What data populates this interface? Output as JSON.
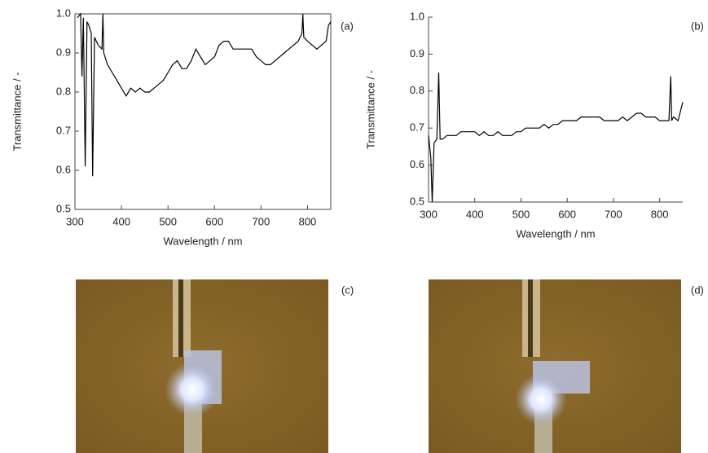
{
  "chart_data": [
    {
      "type": "line",
      "label": "(a)",
      "xlabel": "Wavelength / nm",
      "ylabel": "Transmittance / -",
      "box": true,
      "color": "#000000",
      "xlim": [
        300,
        850
      ],
      "ylim": [
        0.5,
        1.0
      ],
      "xticks": [
        300,
        400,
        500,
        600,
        700,
        800
      ],
      "yticks": [
        0.5,
        0.6,
        0.7,
        0.8,
        0.9,
        {
          "value": 1.0,
          "label": "1.0"
        }
      ],
      "x": [
        305,
        312,
        315,
        318,
        322,
        326,
        330,
        335,
        338,
        342,
        350,
        358,
        360,
        362,
        370,
        380,
        390,
        400,
        410,
        420,
        430,
        440,
        450,
        460,
        470,
        480,
        490,
        500,
        510,
        520,
        530,
        540,
        550,
        560,
        570,
        580,
        590,
        600,
        610,
        620,
        630,
        640,
        650,
        660,
        670,
        680,
        690,
        700,
        710,
        720,
        730,
        740,
        750,
        760,
        770,
        780,
        788,
        790,
        792,
        800,
        810,
        820,
        830,
        840,
        845,
        850
      ],
      "values": [
        0.99,
        1.0,
        0.84,
        0.99,
        0.61,
        0.98,
        0.97,
        0.95,
        0.585,
        0.94,
        0.92,
        0.91,
        1.0,
        0.9,
        0.87,
        0.85,
        0.83,
        0.81,
        0.79,
        0.81,
        0.8,
        0.81,
        0.8,
        0.8,
        0.81,
        0.82,
        0.83,
        0.85,
        0.87,
        0.88,
        0.86,
        0.86,
        0.88,
        0.91,
        0.89,
        0.87,
        0.88,
        0.89,
        0.92,
        0.93,
        0.93,
        0.91,
        0.91,
        0.91,
        0.91,
        0.91,
        0.89,
        0.88,
        0.87,
        0.87,
        0.88,
        0.89,
        0.9,
        0.91,
        0.92,
        0.93,
        0.95,
        1.0,
        0.94,
        0.93,
        0.92,
        0.91,
        0.92,
        0.93,
        0.97,
        0.98
      ]
    },
    {
      "type": "line",
      "label": "(b)",
      "xlabel": "Wavelength / nm",
      "ylabel": "Transmittance / -",
      "box": false,
      "color": "#000000",
      "xlim": [
        300,
        850
      ],
      "ylim": [
        0.5,
        1.0
      ],
      "xticks": [
        300,
        400,
        500,
        600,
        700,
        800
      ],
      "yticks": [
        0.5,
        0.6,
        0.7,
        0.8,
        0.9,
        {
          "value": 1.0,
          "label": "1.0"
        }
      ],
      "x": [
        300,
        305,
        308,
        312,
        318,
        322,
        325,
        330,
        340,
        350,
        360,
        370,
        380,
        390,
        400,
        410,
        420,
        430,
        440,
        450,
        460,
        470,
        480,
        490,
        500,
        510,
        520,
        530,
        540,
        550,
        560,
        570,
        580,
        590,
        600,
        610,
        620,
        630,
        640,
        650,
        660,
        670,
        680,
        690,
        700,
        710,
        720,
        730,
        740,
        750,
        760,
        770,
        780,
        790,
        800,
        810,
        820,
        824,
        826,
        830,
        840,
        850
      ],
      "values": [
        0.68,
        0.62,
        0.5,
        0.66,
        0.67,
        0.85,
        0.67,
        0.67,
        0.68,
        0.68,
        0.68,
        0.69,
        0.69,
        0.69,
        0.69,
        0.68,
        0.69,
        0.68,
        0.68,
        0.69,
        0.68,
        0.68,
        0.68,
        0.69,
        0.69,
        0.7,
        0.7,
        0.7,
        0.7,
        0.71,
        0.7,
        0.71,
        0.71,
        0.72,
        0.72,
        0.72,
        0.72,
        0.73,
        0.73,
        0.73,
        0.73,
        0.73,
        0.72,
        0.72,
        0.72,
        0.72,
        0.73,
        0.72,
        0.73,
        0.74,
        0.74,
        0.73,
        0.73,
        0.73,
        0.72,
        0.72,
        0.72,
        0.84,
        0.72,
        0.73,
        0.72,
        0.77
      ]
    }
  ],
  "photos": [
    {
      "label": "(c)"
    },
    {
      "label": "(d)"
    }
  ]
}
